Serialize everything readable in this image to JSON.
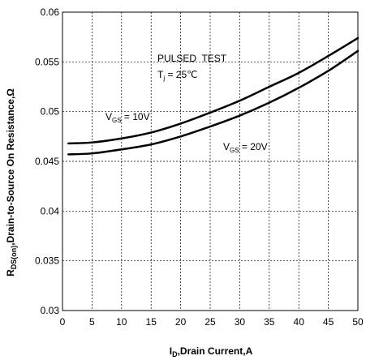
{
  "chart_data": {
    "type": "line",
    "xlabel": {
      "main": "I",
      "sub": "D",
      "rest": ",Drain Current,A"
    },
    "ylabel": {
      "main": "R",
      "sub": "DS(on)",
      "rest": ",Drain-to-Source On Resistance,Ω"
    },
    "xlim": [
      0,
      50
    ],
    "ylim": [
      0.03,
      0.06
    ],
    "xticks": [
      0,
      5,
      10,
      15,
      20,
      25,
      30,
      35,
      40,
      45,
      50
    ],
    "xtick_labels": [
      "0",
      "5",
      "10",
      "15",
      "20",
      "25",
      "30",
      "35",
      "40",
      "45",
      "50"
    ],
    "yticks": [
      0.03,
      0.035,
      0.04,
      0.045,
      0.05,
      0.055,
      0.06
    ],
    "ytick_labels": [
      "0.03",
      "0.035",
      "0.04",
      "0.045",
      "0.05",
      "0.055",
      "0.06"
    ],
    "grid": true,
    "grid_style": "dashed",
    "line_color": "#000000",
    "series": [
      {
        "label": "VGS = 10V",
        "x": [
          1,
          5,
          10,
          15,
          20,
          25,
          30,
          35,
          40,
          45,
          50
        ],
        "y": [
          0.0468,
          0.0469,
          0.0473,
          0.0479,
          0.0488,
          0.0499,
          0.0511,
          0.0525,
          0.0539,
          0.0556,
          0.0574
        ]
      },
      {
        "label": "VGS = 20V",
        "x": [
          1,
          5,
          10,
          15,
          20,
          25,
          30,
          35,
          40,
          45,
          50
        ],
        "y": [
          0.0457,
          0.0458,
          0.0462,
          0.0467,
          0.0475,
          0.0485,
          0.0496,
          0.0509,
          0.0524,
          0.0541,
          0.0561
        ]
      }
    ],
    "annotations": {
      "test_condition": "PULSED  TEST",
      "temperature": {
        "main": "T",
        "sub": "j",
        "rest": " = 25℃"
      },
      "vgs10": {
        "main": "V",
        "sub": "GS",
        "rest": " = 10V"
      },
      "vgs20": {
        "main": "V",
        "sub": "GS",
        "rest": " = 20V"
      }
    }
  }
}
